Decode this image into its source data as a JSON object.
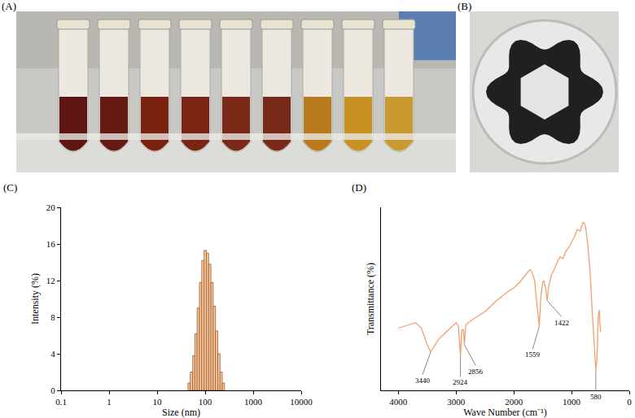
{
  "photos": [
    {
      "label": "(A)"
    },
    {
      "label": "(B)"
    }
  ],
  "chart_data": [
    {
      "type": "histogram",
      "title": "(C)",
      "x_label": "Size (nm)",
      "y_label": "Intensity (%)",
      "bins": [
        44,
        49,
        55,
        61,
        68,
        76,
        85,
        95,
        106,
        118,
        132,
        147,
        164,
        183,
        204,
        227,
        253
      ],
      "values": [
        0.8,
        2.0,
        3.8,
        6.2,
        9.0,
        11.8,
        14.2,
        15.3,
        15.0,
        13.8,
        11.8,
        9.2,
        6.5,
        4.0,
        2.0,
        0.8
      ],
      "color": "#f9c99c",
      "log": "x",
      "xlim": [
        0.1,
        10000
      ],
      "xticks": [
        0.1,
        1,
        10,
        100,
        1000,
        10000
      ],
      "ylim": [
        0,
        20
      ],
      "yticks": [
        0,
        4,
        8,
        12,
        16,
        20
      ],
      "grid": false
    },
    {
      "type": "line",
      "title": "(D)",
      "x_label": "Wave Number (cm⁻¹)",
      "y_label": "Transmittance (%)",
      "x": [
        4000,
        3900,
        3800,
        3700,
        3600,
        3500,
        3440,
        3380,
        3300,
        3200,
        3100,
        3000,
        2960,
        2924,
        2900,
        2870,
        2856,
        2830,
        2700,
        2500,
        2300,
        2100,
        2000,
        1900,
        1800,
        1720,
        1680,
        1640,
        1600,
        1559,
        1530,
        1500,
        1480,
        1450,
        1422,
        1400,
        1350,
        1300,
        1250,
        1200,
        1150,
        1100,
        1050,
        1000,
        950,
        900,
        850,
        800,
        760,
        720,
        680,
        640,
        600,
        580,
        560,
        540,
        520,
        500
      ],
      "values": [
        34,
        35,
        36,
        37,
        34,
        25,
        21,
        24,
        28,
        31,
        34,
        37,
        35,
        19,
        33,
        33,
        25,
        36,
        39,
        43,
        49,
        54,
        56,
        59,
        63,
        66,
        64,
        60,
        47,
        35,
        52,
        59,
        60,
        56,
        49,
        56,
        63,
        66,
        70,
        73,
        72,
        76,
        78,
        81,
        84,
        88,
        87,
        92,
        90,
        80,
        65,
        42,
        18,
        11,
        17,
        40,
        44,
        32
      ],
      "color": "#f0a070",
      "xlim": [
        4300,
        0
      ],
      "xticks": [
        4000,
        3000,
        2000,
        1000,
        0
      ],
      "ylim": [
        0,
        100
      ],
      "tick_labels": "x",
      "grid": false,
      "annotations": [
        {
          "x": 3440,
          "text": "3440"
        },
        {
          "x": 2924,
          "text": "2924"
        },
        {
          "x": 2856,
          "text": "2856"
        },
        {
          "x": 1559,
          "text": "1559"
        },
        {
          "x": 1422,
          "text": "1422"
        },
        {
          "x": 580,
          "text": "580"
        }
      ]
    }
  ]
}
